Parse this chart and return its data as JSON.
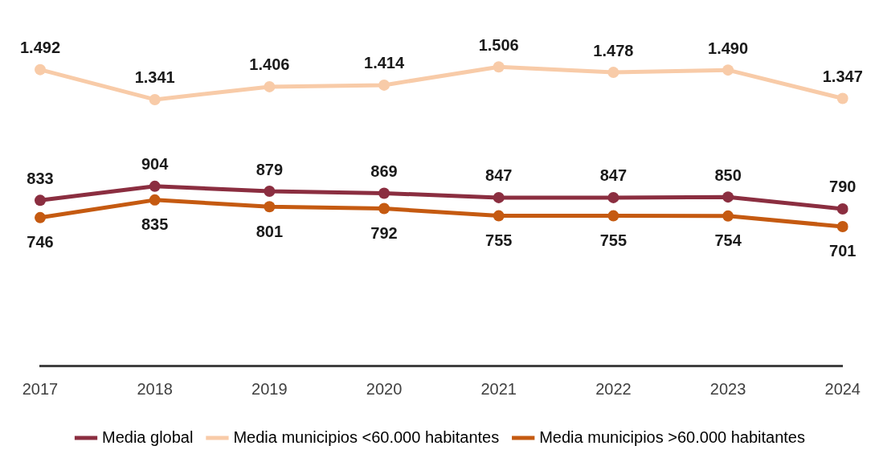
{
  "chart_data": {
    "type": "line",
    "categories": [
      "2017",
      "2018",
      "2019",
      "2020",
      "2021",
      "2022",
      "2023",
      "2024"
    ],
    "series": [
      {
        "name": "Media global",
        "color": "#8b2e40",
        "values": [
          833,
          904,
          879,
          869,
          847,
          847,
          850,
          790
        ],
        "value_labels": [
          "833",
          "904",
          "879",
          "869",
          "847",
          "847",
          "850",
          "790"
        ]
      },
      {
        "name": "Media municipios <60.000 habitantes",
        "color": "#f8cba8",
        "values": [
          1492,
          1341,
          1406,
          1414,
          1506,
          1478,
          1490,
          1347
        ],
        "value_labels": [
          "1.492",
          "1.341",
          "1.406",
          "1.414",
          "1.506",
          "1.478",
          "1.490",
          "1.347"
        ]
      },
      {
        "name": "Media municipios >60.000 habitantes",
        "color": "#c55a11",
        "values": [
          746,
          835,
          801,
          792,
          755,
          755,
          754,
          701
        ],
        "value_labels": [
          "746",
          "835",
          "801",
          "792",
          "755",
          "755",
          "754",
          "701"
        ]
      }
    ],
    "tick_labels": "x",
    "grid": false,
    "legend": "bottom",
    "marker": "circle",
    "line_style": "solid"
  }
}
